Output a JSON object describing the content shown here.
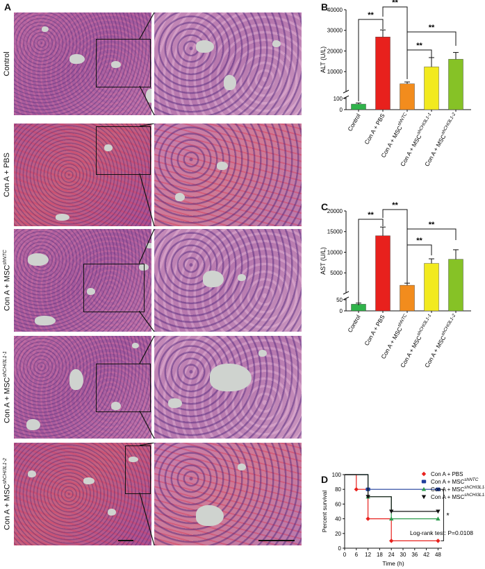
{
  "panels": {
    "A": "A",
    "B": "B",
    "C": "C",
    "D": "D"
  },
  "histology_rows": [
    {
      "base": "Control",
      "sup": ""
    },
    {
      "base": "Con A + PBS",
      "sup": ""
    },
    {
      "base": "Con A + MSC",
      "sup": "shNTC"
    },
    {
      "base": "Con A + MSC",
      "sup": "shCHI3L1-1"
    },
    {
      "base": "Con A + MSC",
      "sup": "shCHI3L1-2"
    }
  ],
  "chart_data": [
    {
      "id": "B",
      "type": "bar",
      "ylabel": "ALT (U/L)",
      "categories": [
        {
          "base": "Control",
          "sup": ""
        },
        {
          "base": "Con A + PBS",
          "sup": ""
        },
        {
          "base": "Con A + MSC",
          "sup": "shNTC"
        },
        {
          "base": "Con A + MSC",
          "sup": "shCHI3L1-1"
        },
        {
          "base": "Con A + MSC",
          "sup": "shCHI3L1-2"
        }
      ],
      "values": [
        50,
        26800,
        4100,
        12300,
        16000
      ],
      "errors": [
        10,
        3400,
        900,
        4500,
        3300
      ],
      "colors": [
        "#2fb34a",
        "#e8211d",
        "#f28c1d",
        "#f2ea1f",
        "#86c226"
      ],
      "yticks_upper": [
        "10000",
        "20000",
        "30000",
        "40000"
      ],
      "yticks_lower": [
        "0",
        "100"
      ],
      "broken_axis": {
        "lower": [
          0,
          100
        ],
        "upper": [
          1000,
          40000
        ]
      },
      "significance": [
        "**",
        "**",
        "**",
        "**"
      ]
    },
    {
      "id": "C",
      "type": "bar",
      "ylabel": "AST (U/L)",
      "categories": [
        {
          "base": "Control",
          "sup": ""
        },
        {
          "base": "Con A + PBS",
          "sup": ""
        },
        {
          "base": "Con A + MSC",
          "sup": "shNTC"
        },
        {
          "base": "Con A + MSC",
          "sup": "shCHI3L1-1"
        },
        {
          "base": "Con A + MSC",
          "sup": "shCHI3L1-2"
        }
      ],
      "values": [
        30,
        14000,
        2000,
        7300,
        8300
      ],
      "errors": [
        5,
        2100,
        500,
        1100,
        2300
      ],
      "colors": [
        "#2fb34a",
        "#e8211d",
        "#f28c1d",
        "#f2ea1f",
        "#86c226"
      ],
      "yticks_upper": [
        "5000",
        "10000",
        "15000",
        "20000"
      ],
      "yticks_lower": [
        "0",
        "50"
      ],
      "broken_axis": {
        "lower": [
          0,
          50
        ],
        "upper": [
          500,
          20000
        ]
      },
      "significance": [
        "**",
        "**",
        "**",
        "**"
      ]
    },
    {
      "id": "D",
      "type": "line",
      "subtype": "kaplan-meier",
      "xlabel": "Time (h)",
      "ylabel": "Percent survival",
      "xticks": [
        0,
        6,
        12,
        18,
        24,
        30,
        36,
        42,
        48
      ],
      "yticks": [
        0,
        20,
        40,
        60,
        80,
        100
      ],
      "xlim": [
        0,
        50
      ],
      "ylim": [
        0,
        100
      ],
      "series": [
        {
          "name": {
            "base": "Con A + PBS",
            "sup": ""
          },
          "color": "#e8211d",
          "marker": "diamond",
          "x": [
            0,
            6,
            12,
            24,
            48
          ],
          "y": [
            100,
            80,
            40,
            10,
            10
          ]
        },
        {
          "name": {
            "base": "Con A + MSC",
            "sup": "shNTC"
          },
          "color": "#1f3f9c",
          "marker": "hexagon",
          "x": [
            0,
            12,
            48
          ],
          "y": [
            100,
            80,
            80
          ]
        },
        {
          "name": {
            "base": "Con A + MSC",
            "sup": "shCHI3L1-1"
          },
          "color": "#2e9d4e",
          "marker": "triangle-up",
          "x": [
            0,
            12,
            24,
            48
          ],
          "y": [
            100,
            70,
            40,
            40
          ]
        },
        {
          "name": {
            "base": "Con A + MSC",
            "sup": "shCHI3L1-2"
          },
          "color": "#111111",
          "marker": "triangle-down",
          "x": [
            0,
            12,
            24,
            48
          ],
          "y": [
            100,
            70,
            50,
            50
          ]
        }
      ],
      "annotation": "Log-rank test: P=0.0108",
      "significance": "*"
    }
  ]
}
